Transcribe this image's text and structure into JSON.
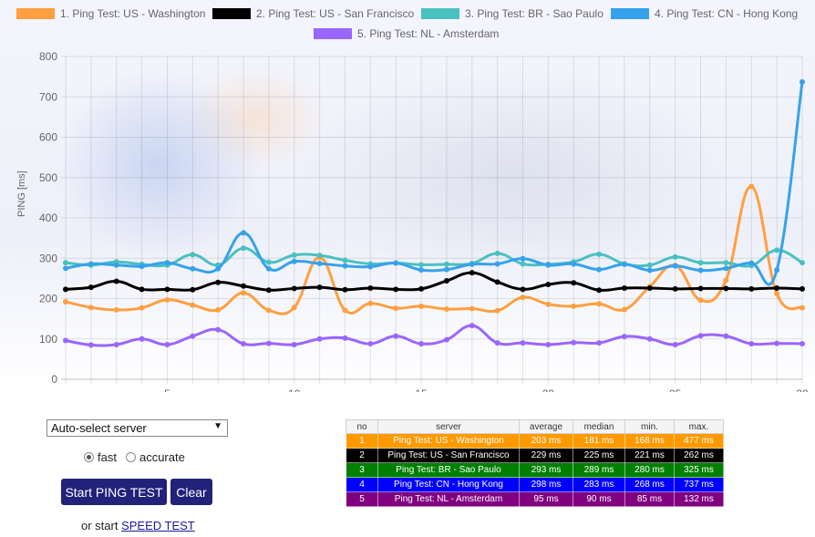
{
  "chart_data": {
    "type": "line",
    "ylabel": "PING [ms]",
    "ylim": [
      0,
      800
    ],
    "yticks": [
      0,
      100,
      200,
      300,
      400,
      500,
      600,
      700,
      800
    ],
    "xlim": [
      1,
      30
    ],
    "xticks": [
      5,
      10,
      15,
      20,
      25,
      30
    ],
    "x": [
      1,
      2,
      3,
      4,
      5,
      6,
      7,
      8,
      9,
      10,
      11,
      12,
      13,
      14,
      15,
      16,
      17,
      18,
      19,
      20,
      21,
      22,
      23,
      24,
      25,
      26,
      27,
      28,
      29,
      30
    ],
    "grid": true,
    "legend_position": "top",
    "series": [
      {
        "name": "1. Ping Test: US - Washington",
        "color": "#FF9F40",
        "values": [
          192,
          178,
          172,
          177,
          197,
          184,
          172,
          214,
          171,
          178,
          302,
          171,
          188,
          176,
          181,
          174,
          175,
          170,
          203,
          186,
          181,
          187,
          173,
          230,
          282,
          196,
          246,
          478,
          212,
          177
        ]
      },
      {
        "name": "2. Ping Test: US - San Francisco",
        "color": "#000000",
        "values": [
          223,
          228,
          243,
          223,
          223,
          222,
          240,
          231,
          221,
          225,
          228,
          222,
          226,
          223,
          224,
          244,
          264,
          241,
          223,
          235,
          239,
          221,
          226,
          226,
          224,
          225,
          225,
          224,
          226,
          224
        ]
      },
      {
        "name": "3. Ping Test: BR - Sao Paulo",
        "color": "#4BC0C0",
        "values": [
          289,
          283,
          291,
          285,
          283,
          309,
          283,
          325,
          290,
          308,
          307,
          295,
          286,
          288,
          284,
          285,
          287,
          312,
          286,
          285,
          291,
          310,
          286,
          283,
          303,
          289,
          289,
          282,
          320,
          289
        ]
      },
      {
        "name": "4. Ping Test: CN - Hong Kong",
        "color": "#36A2EB",
        "values": [
          275,
          286,
          283,
          280,
          289,
          274,
          274,
          363,
          274,
          292,
          287,
          281,
          279,
          288,
          271,
          272,
          285,
          286,
          299,
          283,
          286,
          272,
          285,
          270,
          281,
          270,
          275,
          288,
          271,
          737
        ]
      },
      {
        "name": "5. Ping Test: NL - Amsterdam",
        "color": "#9966FF",
        "values": [
          96,
          85,
          86,
          100,
          86,
          107,
          123,
          88,
          89,
          86,
          100,
          102,
          88,
          107,
          88,
          98,
          133,
          90,
          90,
          86,
          91,
          90,
          106,
          100,
          86,
          108,
          107,
          88,
          89,
          88
        ]
      }
    ]
  },
  "controls": {
    "server_select": "Auto-select server",
    "radio_fast": "fast",
    "radio_accurate": "accurate",
    "start_button": "Start PING TEST",
    "clear_button": "Clear",
    "speed_prefix": "or start ",
    "speed_link": "SPEED TEST"
  },
  "results": {
    "headers": [
      "no",
      "server",
      "average",
      "median",
      "min.",
      "max."
    ],
    "rows": [
      {
        "no": "1",
        "server": "Ping Test: US - Washington",
        "average": "203 ms",
        "median": "181 ms",
        "min": "168 ms",
        "max": "477 ms",
        "bg": "#FF9900"
      },
      {
        "no": "2",
        "server": "Ping Test: US - San Francisco",
        "average": "229 ms",
        "median": "225 ms",
        "min": "221 ms",
        "max": "262 ms",
        "bg": "#000000"
      },
      {
        "no": "3",
        "server": "Ping Test: BR - Sao Paulo",
        "average": "293 ms",
        "median": "289 ms",
        "min": "280 ms",
        "max": "325 ms",
        "bg": "#008000"
      },
      {
        "no": "4",
        "server": "Ping Test: CN - Hong Kong",
        "average": "298 ms",
        "median": "283 ms",
        "min": "268 ms",
        "max": "737 ms",
        "bg": "#0000FF"
      },
      {
        "no": "5",
        "server": "Ping Test: NL - Amsterdam",
        "average": "95 ms",
        "median": "90 ms",
        "min": "85 ms",
        "max": "132 ms",
        "bg": "#800080"
      }
    ]
  }
}
